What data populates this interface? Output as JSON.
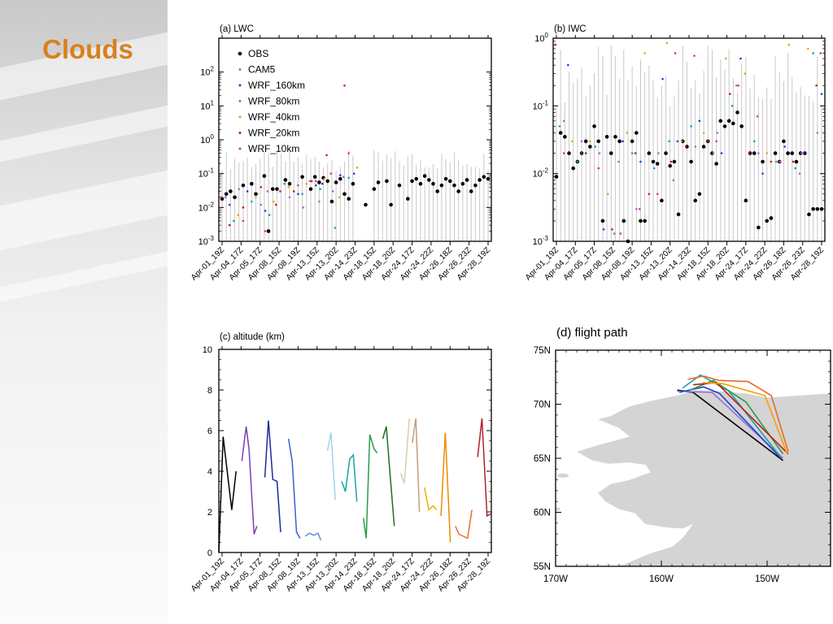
{
  "slide": {
    "title": "Clouds"
  },
  "dates": [
    "Apr-01_19Z",
    "Apr-04_17Z",
    "Apr-05_17Z",
    "Apr-08_15Z",
    "Apr-08_19Z",
    "Apr-13_15Z",
    "Apr-13_20Z",
    "Apr-14_23Z",
    "Apr-18_15Z",
    "Apr-18_20Z",
    "Apr-24_17Z",
    "Apr-24_22Z",
    "Apr-26_18Z",
    "Apr-26_23Z",
    "Apr-28_19Z"
  ],
  "colors": {
    "OBS": "#000000",
    "CAM5": "#9370db",
    "WRF_160km": "#1f3fd6",
    "WRF_80km": "#20a0a0",
    "WRF_40km": "#f5a000",
    "WRF_20km": "#c41a1a",
    "WRF_10km": "#e0308c",
    "spread": "#c8c8c8",
    "land": "#d4d4d4"
  },
  "chart_data": [
    {
      "type": "scatter",
      "title": "(a) LWC",
      "yscale": "log",
      "ylim": [
        0.001,
        1000
      ],
      "yticks": [
        "10-3",
        "10-2",
        "10-1",
        "100",
        "101",
        "102"
      ],
      "legend_position": "top-left",
      "series": [
        {
          "name": "OBS",
          "x": [
            0,
            1,
            2,
            3,
            5,
            7,
            8,
            10,
            11,
            12,
            13,
            15,
            16,
            19,
            21,
            22,
            23,
            24,
            25,
            26,
            27,
            28,
            29,
            30,
            31,
            34,
            36,
            37,
            39,
            40,
            42,
            44,
            45,
            46,
            47,
            48,
            49,
            50,
            51,
            52,
            53,
            54,
            55,
            56,
            57,
            58,
            59,
            60,
            61,
            62,
            63
          ],
          "y": [
            0.018,
            0.025,
            0.03,
            0.02,
            0.045,
            0.05,
            0.025,
            0.085,
            0.002,
            0.035,
            0.035,
            0.065,
            0.05,
            0.08,
            0.035,
            0.08,
            0.055,
            0.075,
            0.06,
            0.015,
            0.055,
            0.07,
            0.025,
            0.018,
            0.05,
            0.012,
            0.035,
            0.055,
            0.06,
            0.012,
            0.045,
            0.018,
            0.06,
            0.07,
            0.05,
            0.085,
            0.065,
            0.05,
            0.03,
            0.045,
            0.07,
            0.06,
            0.045,
            0.03,
            0.05,
            0.065,
            0.03,
            0.045,
            0.065,
            0.08,
            0.07
          ]
        },
        {
          "name": "CAM5",
          "x": [
            1,
            4,
            9,
            11,
            16,
            19,
            21,
            23,
            26,
            29
          ],
          "y": [
            0.02,
            0.035,
            0.012,
            0.03,
            0.02,
            0.01,
            0.06,
            0.015,
            0.03,
            0.08
          ]
        },
        {
          "name": "WRF_160km",
          "x": [
            2,
            6,
            10,
            14,
            18,
            22,
            24,
            28,
            31
          ],
          "y": [
            0.012,
            0.03,
            0.008,
            0.03,
            0.025,
            0.045,
            0.05,
            0.09,
            0.1
          ]
        },
        {
          "name": "WRF_80km",
          "x": [
            3,
            7,
            11,
            15,
            19,
            23,
            27,
            30
          ],
          "y": [
            0.004,
            0.015,
            0.006,
            0.05,
            0.025,
            0.035,
            0.0025,
            0.075
          ]
        },
        {
          "name": "WRF_40km",
          "x": [
            4,
            8,
            12,
            16,
            20,
            24,
            28,
            32
          ],
          "y": [
            0.006,
            0.02,
            0.015,
            0.04,
            0.05,
            0.07,
            0.02,
            0.15
          ]
        },
        {
          "name": "WRF_20km",
          "x": [
            2,
            5,
            9,
            13,
            17,
            21,
            25,
            29
          ],
          "y": [
            0.003,
            0.01,
            0.04,
            0.012,
            0.03,
            0.06,
            0.35,
            40
          ]
        },
        {
          "name": "WRF_10km",
          "x": [
            0,
            5,
            10,
            14,
            18,
            22,
            26,
            30
          ],
          "y": [
            0.02,
            0.004,
            0.002,
            0.03,
            0.045,
            0.06,
            0.1,
            0.4
          ]
        }
      ]
    },
    {
      "type": "scatter",
      "title": "(b) IWC",
      "yscale": "log",
      "ylim": [
        0.001,
        1
      ],
      "yticks": [
        "10-3",
        "10-2",
        "10-1",
        "100"
      ],
      "series": [
        {
          "name": "OBS",
          "x": [
            0,
            1,
            2,
            3,
            4,
            5,
            6,
            7,
            8,
            9,
            10,
            11,
            12,
            13,
            14,
            15,
            16,
            17,
            18,
            19,
            20,
            21,
            22,
            23,
            24,
            25,
            26,
            27,
            28,
            29,
            30,
            31,
            32,
            33,
            34,
            35,
            36,
            37,
            38,
            39,
            40,
            41,
            42,
            43,
            44,
            45,
            46,
            47,
            48,
            49,
            50,
            51,
            52,
            53,
            54,
            55,
            56,
            57,
            58,
            59,
            60,
            61,
            62,
            63
          ],
          "y": [
            0.009,
            0.04,
            0.035,
            0.02,
            0.012,
            0.015,
            0.02,
            0.03,
            0.025,
            0.05,
            0.03,
            0.002,
            0.035,
            0.02,
            0.035,
            0.03,
            0.002,
            0.001,
            0.03,
            0.04,
            0.002,
            0.002,
            0.02,
            0.015,
            0.014,
            0.004,
            0.02,
            0.013,
            0.015,
            0.0025,
            0.03,
            0.025,
            0.015,
            0.004,
            0.005,
            0.025,
            0.03,
            0.02,
            0.014,
            0.06,
            0.05,
            0.06,
            0.055,
            0.08,
            0.05,
            0.004,
            0.02,
            0.02,
            0.0016,
            0.015,
            0.002,
            0.0022,
            0.02,
            0.015,
            0.03,
            0.02,
            0.02,
            0.015,
            0.02,
            0.02,
            0.0025,
            0.003,
            0.003,
            0.003
          ]
        },
        {
          "name": "CAM5",
          "x": [
            2,
            6,
            10,
            15,
            19,
            24,
            28,
            33,
            38,
            43,
            48,
            53,
            58,
            62
          ],
          "y": [
            0.06,
            0.03,
            0.02,
            0.015,
            0.003,
            0.02,
            0.008,
            0.025,
            0.04,
            0.2,
            0.02,
            0.015,
            0.01,
            0.04
          ]
        },
        {
          "name": "WRF_160km",
          "x": [
            3,
            7,
            11,
            16,
            20,
            25,
            29,
            34,
            39,
            44,
            49,
            54,
            59,
            63
          ],
          "y": [
            0.4,
            0.02,
            0.0015,
            0.03,
            0.015,
            0.25,
            0.03,
            0.06,
            0.02,
            0.5,
            0.01,
            0.025,
            0.02,
            0.15
          ]
        },
        {
          "name": "WRF_80km",
          "x": [
            1,
            5,
            9,
            14,
            18,
            23,
            27,
            32,
            37,
            42,
            47,
            52,
            57,
            61
          ],
          "y": [
            0.05,
            0.015,
            0.025,
            0.0013,
            0.02,
            0.012,
            0.03,
            0.05,
            0.02,
            0.1,
            0.03,
            0.015,
            0.012,
            0.6
          ]
        },
        {
          "name": "WRF_40km",
          "x": [
            4,
            8,
            12,
            17,
            21,
            26,
            30,
            35,
            40,
            45,
            50,
            55,
            60
          ],
          "y": [
            0.03,
            0.03,
            0.005,
            0.04,
            0.6,
            0.85,
            0.03,
            0.04,
            0.5,
            0.3,
            0.02,
            0.8,
            0.7
          ]
        },
        {
          "name": "WRF_20km",
          "x": [
            0,
            6,
            13,
            19,
            22,
            27,
            31,
            36,
            41,
            46,
            51,
            56,
            62
          ],
          "y": [
            0.8,
            0.02,
            0.0015,
            0.02,
            0.005,
            0.015,
            0.025,
            0.03,
            0.15,
            0.02,
            0.015,
            0.015,
            0.2
          ]
        },
        {
          "name": "WRF_10km",
          "x": [
            2,
            10,
            15,
            20,
            24,
            28,
            33,
            38,
            43,
            48,
            53,
            58,
            63
          ],
          "y": [
            0.02,
            0.012,
            0.0013,
            0.003,
            0.005,
            0.6,
            0.55,
            0.03,
            0.2,
            0.07,
            0.015,
            0.02,
            0.6
          ]
        }
      ]
    },
    {
      "type": "line",
      "title": "(c) altitude (km)",
      "ylim": [
        0,
        10
      ],
      "yticks": [
        "0",
        "2",
        "4",
        "6",
        "8",
        "10"
      ],
      "series": [
        {
          "color": "#000000",
          "x": [
            0,
            0.6,
            1.8,
            2.4
          ],
          "y": [
            0,
            5.7,
            2.1,
            4
          ]
        },
        {
          "color": "#7b3fb5",
          "x": [
            3.2,
            3.8,
            4.2,
            4.9,
            5.3
          ],
          "y": [
            4.5,
            6.2,
            5.1,
            0.9,
            1.3
          ]
        },
        {
          "color": "#1a2a9a",
          "x": [
            6.4,
            6.9,
            7.5,
            8.1,
            8.6
          ],
          "y": [
            3.7,
            6.5,
            3.6,
            3.5,
            1
          ]
        },
        {
          "color": "#3a5fcd",
          "x": [
            9.7,
            10.2,
            10.8,
            11.3
          ],
          "y": [
            5.6,
            4.5,
            1,
            0.7
          ]
        },
        {
          "color": "#5f8ee0",
          "x": [
            12,
            12.6,
            13.2,
            13.8,
            14.2
          ],
          "y": [
            0.8,
            0.95,
            0.85,
            0.95,
            0.6
          ]
        },
        {
          "color": "#9fd6e6",
          "x": [
            15.1,
            15.6,
            16.2
          ],
          "y": [
            5,
            5.9,
            2.6
          ]
        },
        {
          "color": "#1aa3a3",
          "x": [
            17.1,
            17.6,
            18.2,
            18.7,
            19.2
          ],
          "y": [
            3.5,
            3,
            4.6,
            4.8,
            2.5
          ]
        },
        {
          "color": "#2a9a4a",
          "x": [
            20.1,
            20.5,
            21,
            21.6,
            22
          ],
          "y": [
            1.7,
            0.7,
            5.8,
            5.1,
            4.9
          ]
        },
        {
          "color": "#1f6f1f",
          "x": [
            22.8,
            23.3,
            23.8,
            24.4
          ],
          "y": [
            5.6,
            6.2,
            3.9,
            1.3
          ]
        },
        {
          "color": "#d8cfa8",
          "x": [
            25.3,
            25.8,
            26.5
          ],
          "y": [
            3.9,
            3.4,
            6.6
          ]
        },
        {
          "color": "#c2a07a",
          "x": [
            26.9,
            27.4,
            27.9
          ],
          "y": [
            5.4,
            6.6,
            2
          ]
        },
        {
          "color": "#e3b400",
          "x": [
            28.6,
            29.2,
            29.8,
            30.3
          ],
          "y": [
            3.2,
            2.1,
            2.3,
            2.1
          ]
        },
        {
          "color": "#f08a00",
          "x": [
            30.9,
            31.5,
            32.2
          ],
          "y": [
            1.8,
            5.9,
            0.5
          ]
        },
        {
          "color": "#e86a28",
          "x": [
            32.9,
            33.4,
            34,
            34.6,
            35.2
          ],
          "y": [
            1.3,
            0.9,
            0.8,
            0.7,
            2.1
          ]
        },
        {
          "color": "#b0202a",
          "x": [
            36,
            36.6,
            37.3,
            37.8
          ],
          "y": [
            4.7,
            6.6,
            1.8,
            1.9
          ]
        }
      ]
    },
    {
      "type": "map",
      "title": "(d) flight path",
      "xticks": [
        "170W",
        "160W",
        "150W"
      ],
      "yticks": [
        "55N",
        "60N",
        "65N",
        "70N",
        "75N"
      ],
      "lon_range": [
        -170,
        -144
      ],
      "lat_range": [
        55,
        75
      ],
      "paths": [
        {
          "color": "#000000",
          "pts": [
            [
              -158.5,
              71.3
            ],
            [
              -157,
              71.1
            ],
            [
              -148.5,
              64.8
            ]
          ]
        },
        {
          "color": "#9370db",
          "pts": [
            [
              -158.5,
              71.2
            ],
            [
              -155.2,
              71.1
            ],
            [
              -148.5,
              65
            ]
          ]
        },
        {
          "color": "#1f3fd6",
          "pts": [
            [
              -158.3,
              71.1
            ],
            [
              -156,
              71.6
            ],
            [
              -154.5,
              71
            ],
            [
              -148.7,
              65
            ]
          ]
        },
        {
          "color": "#20a0a0",
          "pts": [
            [
              -158,
              71.5
            ],
            [
              -156.3,
              72.7
            ],
            [
              -153.6,
              71.2
            ],
            [
              -148.8,
              65.2
            ]
          ]
        },
        {
          "color": "#2a9a4a",
          "pts": [
            [
              -157.3,
              71.3
            ],
            [
              -155.1,
              72.2
            ],
            [
              -152,
              70.2
            ],
            [
              -148.5,
              65.4
            ]
          ]
        },
        {
          "color": "#c41a1a",
          "pts": [
            [
              -157,
              71.8
            ],
            [
              -154.8,
              72
            ],
            [
              -151.3,
              68.6
            ],
            [
              -148,
              65.4
            ]
          ]
        },
        {
          "color": "#e86a28",
          "pts": [
            [
              -157.5,
              72.3
            ],
            [
              -156,
              72.6
            ],
            [
              -154.6,
              72.2
            ],
            [
              -151.8,
              72.1
            ],
            [
              -149.6,
              70.8
            ],
            [
              -148,
              65.6
            ]
          ]
        },
        {
          "color": "#f5a000",
          "pts": [
            [
              -156.1,
              72
            ],
            [
              -154.2,
              71.9
            ],
            [
              -150.2,
              70.8
            ],
            [
              -148.1,
              65.4
            ]
          ]
        }
      ]
    }
  ]
}
